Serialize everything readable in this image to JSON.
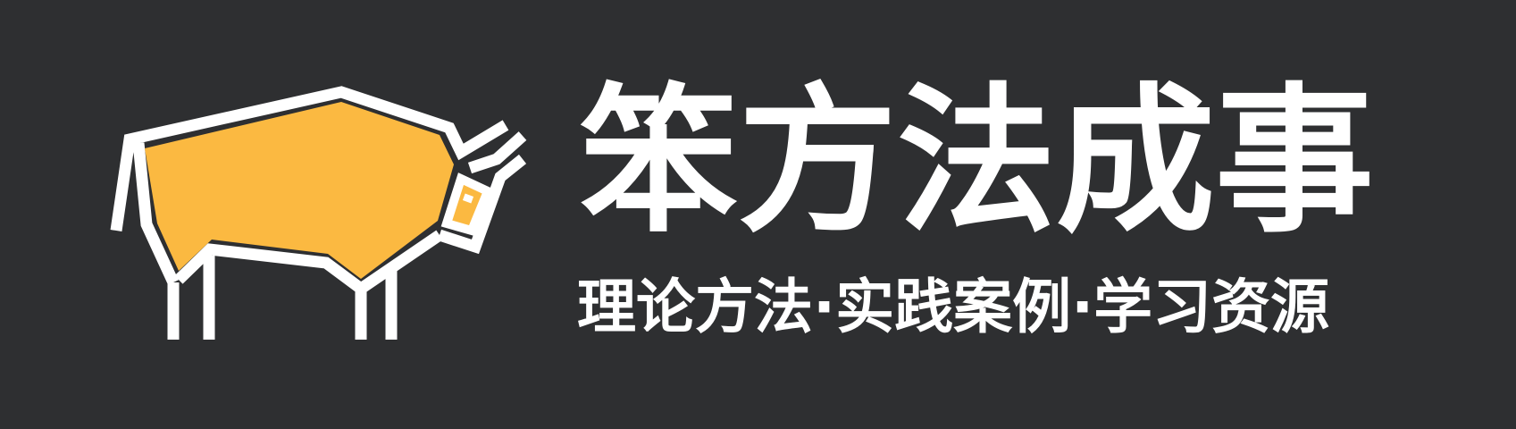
{
  "banner": {
    "title": "笨方法成事",
    "subtitle": "理论方法·实践案例·学习资源"
  },
  "colors": {
    "background": "#2e2f31",
    "text": "#ffffff",
    "accent": "#fbb941",
    "outline": "#ffffff"
  },
  "logo": {
    "icon": "ox-icon"
  }
}
